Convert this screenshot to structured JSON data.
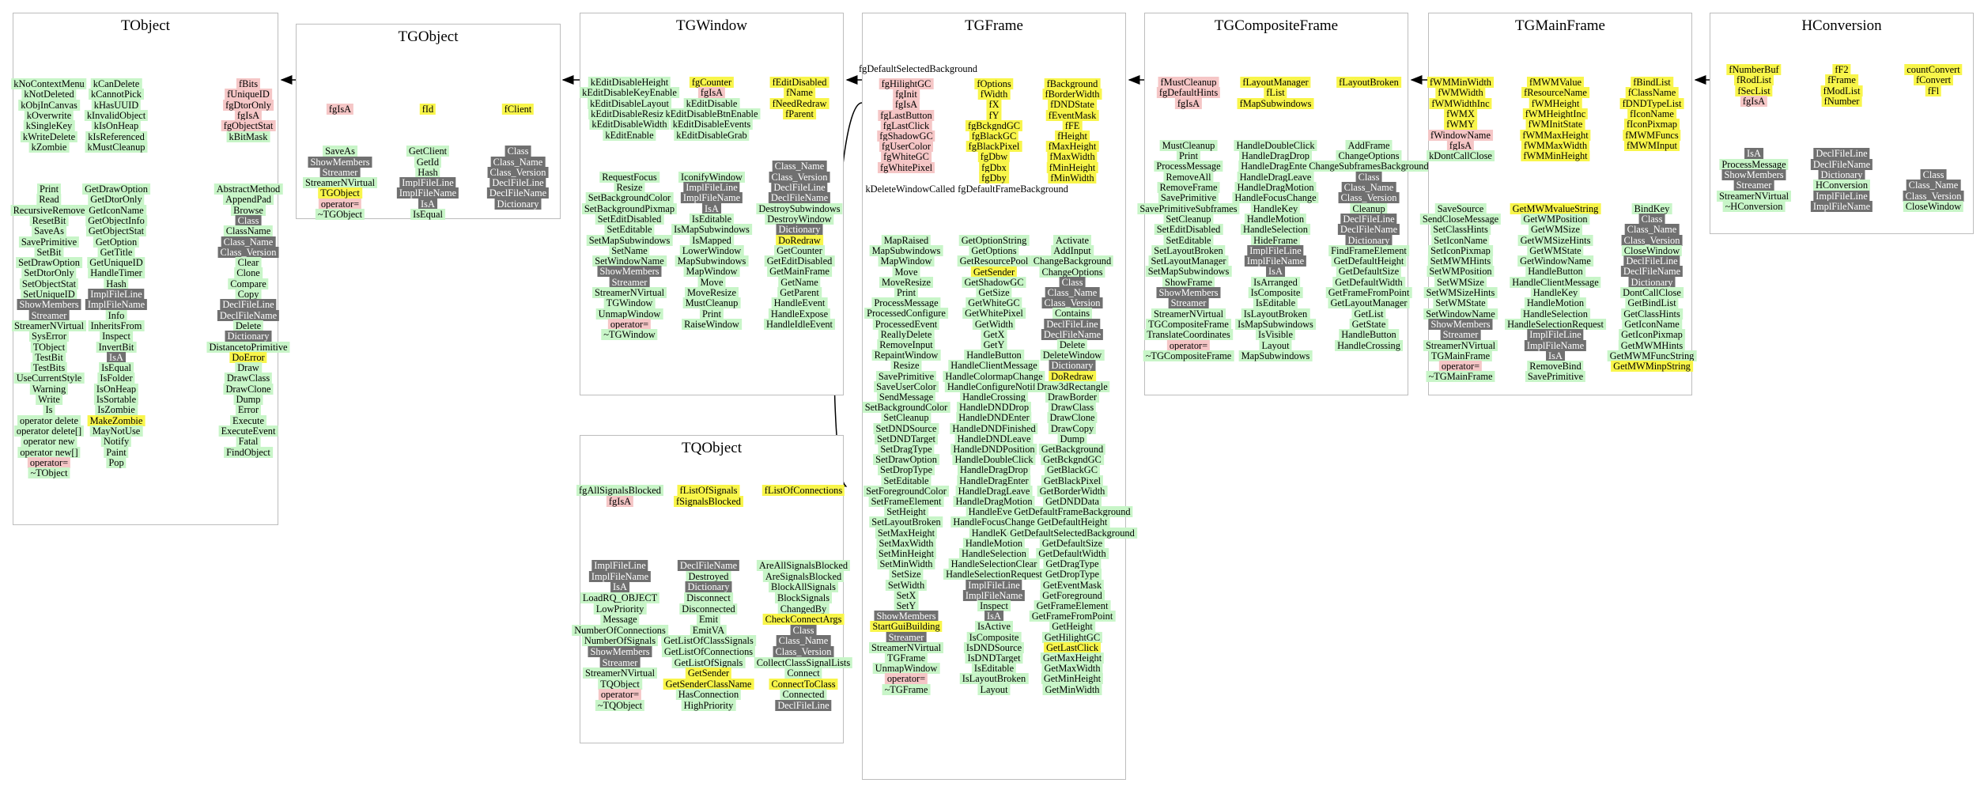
{
  "palette": {
    "public": "#c8f5c8",
    "protected": "#f5c6c6",
    "highlighted": "#f8f54a",
    "inherited": "#707070",
    "border": "#bdbdbd",
    "arrow": "#000000"
  },
  "classes": [
    {
      "title": "TObject",
      "columns": [
        [
          "kNoContextMenu",
          "kNotDeleted",
          "kObjInCanvas",
          "kOverwrite",
          "kSingleKey",
          "kWriteDelete",
          "kZombie",
          "",
          "",
          "",
          "Print",
          "Read",
          "RecursiveRemove",
          "ResetBit",
          "SaveAs",
          "SavePrimitive",
          "SetBit",
          "SetDrawOption",
          "SetDtorOnly",
          "SetObjectStat",
          "SetUniqueID",
          "ShowMembers",
          "Streamer",
          "StreamerNVirtual",
          "SysError",
          "TObject",
          "TestBit",
          "TestBits",
          "UseCurrentStyle",
          "Warning",
          "Write",
          "Is",
          "operator delete",
          "operator delete[]",
          "operator new",
          "operator new[]",
          "operator=",
          "~TObject"
        ],
        [
          "kCanDelete",
          "kCannotPick",
          "kHasUUID",
          "kInvalidObject",
          "kIsOnHeap",
          "kIsReferenced",
          "kMustCleanup",
          "",
          "",
          "",
          "GetDrawOption",
          "GetDtorOnly",
          "GetIconName",
          "GetObjectInfo",
          "GetObjectStat",
          "GetOption",
          "GetTitle",
          "GetUniqueID",
          "HandleTimer",
          "Hash",
          "ImplFileLine",
          "ImplFileName",
          "Info",
          "InheritsFrom",
          "Inspect",
          "InvertBit",
          "IsA",
          "IsEqual",
          "IsFolder",
          "IsOnHeap",
          "IsSortable",
          "IsZombie",
          "MakeZombie",
          "MayNotUse",
          "Notify",
          "Paint",
          "Pop"
        ],
        [
          "fBits",
          "fUniqueID",
          "fgDtorOnly",
          "fgIsA",
          "fgObjectStat",
          "kBitMask",
          "",
          "",
          "",
          "",
          "AbstractMethod",
          "AppendPad",
          "Browse",
          "Class",
          "ClassName",
          "Class_Name",
          "Class_Version",
          "Clear",
          "Clone",
          "Compare",
          "Copy",
          "DeclFileLine",
          "DeclFileName",
          "Delete",
          "Dictionary",
          "DistancetoPrimitive",
          "DoError",
          "Draw",
          "DrawClass",
          "DrawClone",
          "Dump",
          "Error",
          "Execute",
          "ExecuteEvent",
          "Fatal",
          "FindObject"
        ]
      ]
    },
    {
      "title": "TGObject",
      "columns": [
        [
          "fgIsA",
          "",
          "",
          "",
          "SaveAs",
          "ShowMembers",
          "Streamer",
          "StreamerNVirtual",
          "TGObject",
          "operator=",
          "~TGObject"
        ],
        [
          "fId",
          "",
          "",
          "",
          "GetClient",
          "GetId",
          "Hash",
          "ImplFileLine",
          "ImplFileName",
          "IsA",
          "IsEqual"
        ],
        [
          "fClient",
          "",
          "",
          "",
          "Class",
          "Class_Name",
          "Class_Version",
          "DeclFileLine",
          "DeclFileName",
          "Dictionary"
        ]
      ]
    },
    {
      "title": "TGWindow",
      "columns": [
        [
          "kEditDisableHeight",
          "kEditDisableKeyEnable",
          "kEditDisableLayout",
          "kEditDisableResize",
          "kEditDisableWidth",
          "kEditEnable",
          "",
          "",
          "",
          "RequestFocus",
          "Resize",
          "SetBackgroundColor",
          "SetBackgroundPixmap",
          "SetEditDisabled",
          "SetEditable",
          "SetMapSubwindows",
          "SetName",
          "SetWindowName",
          "ShowMembers",
          "Streamer",
          "StreamerNVirtual",
          "TGWindow",
          "UnmapWindow",
          "operator=",
          "~TGWindow"
        ],
        [
          "fgCounter",
          "fgIsA",
          "kEditDisable",
          "kEditDisableBtnEnable",
          "kEditDisableEvents",
          "kEditDisableGrab",
          "",
          "",
          "",
          "IconifyWindow",
          "ImplFileLine",
          "ImplFileName",
          "IsA",
          "IsEditable",
          "IsMapSubwindows",
          "IsMapped",
          "LowerWindow",
          "MapSubwindows",
          "MapWindow",
          "Move",
          "MoveResize",
          "MustCleanup",
          "Print",
          "RaiseWindow"
        ],
        [
          "fEditDisabled",
          "fName",
          "fNeedRedraw",
          "fParent",
          "",
          "",
          "",
          "",
          "Class_Name",
          "Class_Version",
          "DeclFileLine",
          "DeclFileName",
          "DestroySubwindows",
          "DestroyWindow",
          "Dictionary",
          "DoRedraw",
          "GetCounter",
          "GetEditDisabled",
          "GetMainFrame",
          "GetName",
          "GetParent",
          "HandleEvent",
          "HandleExpose",
          "HandleIdleEvent"
        ]
      ]
    },
    {
      "title": "TGFrame",
      "columns": [
        [
          "fgHilightGC",
          "fgInit",
          "fgIsA",
          "fgLastButton",
          "fgLastClick",
          "fgShadowGC",
          "fgUserColor",
          "fgWhiteGC",
          "fgWhitePixel",
          "",
          "",
          "",
          "",
          "",
          "",
          "MapRaised",
          "MapSubwindows",
          "MapWindow",
          "Move",
          "MoveResize",
          "Print",
          "ProcessMessage",
          "ProcessedConfigure",
          "ProcessedEvent",
          "ReallyDelete",
          "RemoveInput",
          "RepaintWindow",
          "Resize",
          "SavePrimitive",
          "SaveUserColor",
          "SendMessage",
          "SetBackgroundColor",
          "SetCleanup",
          "SetDNDSource",
          "SetDNDTarget",
          "SetDragType",
          "SetDrawOption",
          "SetDropType",
          "SetEditable",
          "SetForegroundColor",
          "SetFrameElement",
          "SetHeight",
          "SetLayoutBroken",
          "SetMaxHeight",
          "SetMaxWidth",
          "SetMinHeight",
          "SetMinWidth",
          "SetSize",
          "SetWidth",
          "SetX",
          "SetY",
          "ShowMembers",
          "StartGuiBuilding",
          "Streamer",
          "StreamerNVirtual",
          "TGFrame",
          "UnmapWindow",
          "operator=",
          "~TGFrame"
        ],
        [
          "fOptions",
          "fWidth",
          "fX",
          "fY",
          "fgBckgndGC",
          "fgBlackGC",
          "fgBlackPixel",
          "fgDbw",
          "fgDbx",
          "fgDby",
          "",
          "",
          "",
          "",
          "",
          "GetOptionString",
          "GetOptions",
          "GetResourcePool",
          "GetSender",
          "GetShadowGC",
          "GetSize",
          "GetWhiteGC",
          "GetWhitePixel",
          "GetWidth",
          "GetX",
          "GetY",
          "HandleButton",
          "HandleClientMessage",
          "HandleColormapChange",
          "HandleConfigureNotify",
          "HandleCrossing",
          "HandleDNDDrop",
          "HandleDNDEnter",
          "HandleDNDFinished",
          "HandleDNDLeave",
          "HandleDNDPosition",
          "HandleDoubleClick",
          "HandleDragDrop",
          "HandleDragEnter",
          "HandleDragLeave",
          "HandleDragMotion",
          "HandleEvent",
          "HandleFocusChange",
          "HandleKey",
          "HandleMotion",
          "HandleSelection",
          "HandleSelectionClear",
          "HandleSelectionRequest",
          "ImplFileLine",
          "ImplFileName",
          "Inspect",
          "IsA",
          "IsActive",
          "IsComposite",
          "IsDNDSource",
          "IsDNDTarget",
          "IsEditable",
          "IsLayoutBroken",
          "Layout"
        ],
        [
          "fBackground",
          "fBorderWidth",
          "fDNDState",
          "fEventMask",
          "fFE",
          "fHeight",
          "fMaxHeight",
          "fMaxWidth",
          "fMinHeight",
          "fMinWidth",
          "",
          "",
          "",
          "",
          "",
          "Activate",
          "AddInput",
          "ChangeBackground",
          "ChangeOptions",
          "Class",
          "Class_Name",
          "Class_Version",
          "Contains",
          "DeclFileLine",
          "DeclFileName",
          "Delete",
          "DeleteWindow",
          "Dictionary",
          "DoRedraw",
          "Draw3dRectangle",
          "DrawBorder",
          "DrawClass",
          "DrawClone",
          "DrawCopy",
          "Dump",
          "GetBackground",
          "GetBckgndGC",
          "GetBlackGC",
          "GetBlackPixel",
          "GetBorderWidth",
          "GetDNDData",
          "GetDefaultFrameBackground",
          "GetDefaultHeight",
          "GetDefaultSelectedBackground",
          "GetDefaultSize",
          "GetDefaultWidth",
          "GetDragType",
          "GetDropType",
          "GetEventMask",
          "GetForeground",
          "GetFrameElement",
          "GetFrameFromPoint",
          "GetHeight",
          "GetHilightGC",
          "GetLastClick",
          "GetMaxHeight",
          "GetMaxWidth",
          "GetMinHeight",
          "GetMinWidth"
        ]
      ],
      "extra_left": [
        "fgDefaultSelectedBackground",
        "kDeleteWindowCalled"
      ],
      "extra_bottom": "fgDefaultFrameBackground"
    },
    {
      "title": "TGCompositeFrame",
      "columns": [
        [
          "fMustCleanup",
          "fgDefaultHints",
          "fgIsA",
          "",
          "",
          "",
          "MustCleanup",
          "Print",
          "ProcessMessage",
          "RemoveAll",
          "RemoveFrame",
          "SavePrimitive",
          "SavePrimitiveSubframes",
          "SetCleanup",
          "SetEditDisabled",
          "SetEditable",
          "SetLayoutBroken",
          "SetLayoutManager",
          "SetMapSubwindows",
          "ShowFrame",
          "ShowMembers",
          "Streamer",
          "StreamerNVirtual",
          "TGCompositeFrame",
          "TranslateCoordinates",
          "operator=",
          "~TGCompositeFrame"
        ],
        [
          "fLayoutManager",
          "fList",
          "fMapSubwindows",
          "",
          "",
          "",
          "HandleDoubleClick",
          "HandleDragDrop",
          "HandleDragEnter",
          "HandleDragLeave",
          "HandleDragMotion",
          "HandleFocusChange",
          "HandleKey",
          "HandleMotion",
          "HandleSelection",
          "HideFrame",
          "ImplFileLine",
          "ImplFileName",
          "IsA",
          "IsArranged",
          "IsComposite",
          "IsEditable",
          "IsLayoutBroken",
          "IsMapSubwindows",
          "IsVisible",
          "Layout",
          "MapSubwindows"
        ],
        [
          "fLayoutBroken",
          "",
          "",
          "",
          "",
          "",
          "AddFrame",
          "ChangeOptions",
          "ChangeSubframesBackground",
          "Class",
          "Class_Name",
          "Class_Version",
          "Cleanup",
          "DeclFileLine",
          "DeclFileName",
          "Dictionary",
          "FindFrameElement",
          "GetDefaultHeight",
          "GetDefaultSize",
          "GetDefaultWidth",
          "GetFrameFromPoint",
          "GetLayoutManager",
          "GetList",
          "GetState",
          "HandleButton",
          "HandleCrossing"
        ]
      ]
    },
    {
      "title": "TGMainFrame",
      "columns": [
        [
          "fWMMinWidth",
          "fWMWidth",
          "fWMWidthInc",
          "fWMX",
          "fWMY",
          "fWindowName",
          "fgIsA",
          "kDontCallClose",
          "",
          "",
          "",
          "",
          "SaveSource",
          "SendCloseMessage",
          "SetClassHints",
          "SetIconName",
          "SetIconPixmap",
          "SetMWMHints",
          "SetWMPosition",
          "SetWMSize",
          "SetWMSizeHints",
          "SetWMState",
          "SetWindowName",
          "ShowMembers",
          "Streamer",
          "StreamerNVirtual",
          "TGMainFrame",
          "operator=",
          "~TGMainFrame"
        ],
        [
          "fMWMValue",
          "fResourceName",
          "fWMHeight",
          "fWMHeightInc",
          "fWMInitState",
          "fWMMaxHeight",
          "fWMMaxWidth",
          "fWMMinHeight",
          "",
          "",
          "",
          "",
          "GetMWMvalueString",
          "GetWMPosition",
          "GetWMSize",
          "GetWMSizeHints",
          "GetWMState",
          "GetWindowName",
          "HandleButton",
          "HandleClientMessage",
          "HandleKey",
          "HandleMotion",
          "HandleSelection",
          "HandleSelectionRequest",
          "ImplFileLine",
          "ImplFileName",
          "IsA",
          "RemoveBind",
          "SavePrimitive"
        ],
        [
          "fBindList",
          "fClassName",
          "fDNDTypeList",
          "fIconName",
          "fIconPixmap",
          "fMWMFuncs",
          "fMWMInput",
          "",
          "",
          "",
          "",
          "",
          "BindKey",
          "Class",
          "Class_Name",
          "Class_Version",
          "CloseWindow",
          "DeclFileLine",
          "DeclFileName",
          "Dictionary",
          "DontCallClose",
          "GetBindList",
          "GetClassHints",
          "GetIconName",
          "GetIconPixmap",
          "GetMWMHints",
          "GetMWMFuncString",
          "GetMWMinpString"
        ]
      ]
    },
    {
      "title": "TQObject",
      "columns": [
        [
          "fgAllSignalsBlocked",
          "fgIsA",
          "",
          "",
          "",
          "",
          "",
          "ImplFileLine",
          "ImplFileName",
          "IsA",
          "LoadRQ_OBJECT",
          "LowPriority",
          "Message",
          "NumberOfConnections",
          "NumberOfSignals",
          "ShowMembers",
          "Streamer",
          "StreamerNVirtual",
          "TQObject",
          "operator=",
          "~TQObject"
        ],
        [
          "fListOfSignals",
          "fSignalsBlocked",
          "",
          "",
          "",
          "",
          "",
          "DeclFileName",
          "Destroyed",
          "Dictionary",
          "Disconnect",
          "Disconnected",
          "Emit",
          "EmitVA",
          "GetListOfClassSignals",
          "GetListOfConnections",
          "GetListOfSignals",
          "GetSender",
          "GetSenderClassName",
          "HasConnection",
          "HighPriority"
        ],
        [
          "fListOfConnections",
          "",
          "",
          "",
          "",
          "",
          "",
          "AreAllSignalsBlocked",
          "AreSignalsBlocked",
          "BlockAllSignals",
          "BlockSignals",
          "ChangedBy",
          "CheckConnectArgs",
          "Class",
          "Class_Name",
          "Class_Version",
          "CollectClassSignalLists",
          "Connect",
          "ConnectToClass",
          "Connected",
          "DeclFileLine"
        ]
      ]
    },
    {
      "title": "HConversion",
      "columns": [
        [
          "fNumberBuf",
          "fRodList",
          "fSecList",
          "fgIsA",
          "",
          "",
          "",
          "",
          "IsA",
          "ProcessMessage",
          "ShowMembers",
          "Streamer",
          "StreamerNVirtual",
          "~HConversion"
        ],
        [
          "fF2",
          "fFrame",
          "fModList",
          "fNumber",
          "",
          "",
          "",
          "",
          "DeclFileLine",
          "DeclFileName",
          "Dictionary",
          "HConversion",
          "ImplFileLine",
          "ImplFileName"
        ],
        [
          "countConvert",
          "fConvert",
          "fFl",
          "",
          "",
          "",
          "",
          "",
          "",
          "",
          "Class",
          "Class_Name",
          "Class_Version",
          "CloseWindow"
        ]
      ]
    }
  ]
}
